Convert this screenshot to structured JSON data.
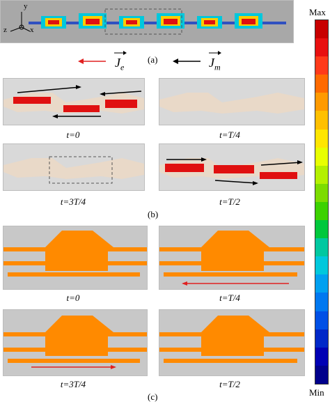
{
  "labels": {
    "panel_a": "(a)",
    "panel_b": "(b)",
    "panel_c": "(c)",
    "je": "J",
    "je_sub": "e",
    "jm": "J",
    "jm_sub": "m",
    "axis_y": "y",
    "axis_z": "z",
    "axis_x": "x"
  },
  "colorbar": {
    "max_label": "Max",
    "min_label": "Min",
    "colors": [
      "#c80000",
      "#e81010",
      "#ff3a1a",
      "#ff6a00",
      "#ff9a00",
      "#ffc000",
      "#ffe600",
      "#e8ff00",
      "#b4f000",
      "#7cdc00",
      "#3cd200",
      "#00c83c",
      "#00c8a0",
      "#00c8dc",
      "#00a0f0",
      "#0078f0",
      "#0050e6",
      "#0028c8",
      "#0000b4",
      "#00008c"
    ]
  },
  "time_labels_b": {
    "tl": "t=0",
    "tr": "t=T/4",
    "bl": "t=3T/4",
    "br": "t=T/2"
  },
  "time_labels_c": {
    "tl": "t=0",
    "tr": "t=T/4",
    "bl": "t=3T/4",
    "br": "t=T/2"
  },
  "colors": {
    "je_arrow": "#e02020",
    "jm_arrow": "#000000",
    "field_orange": "#ff8a00",
    "panel_gray": "#d9d9d9"
  }
}
